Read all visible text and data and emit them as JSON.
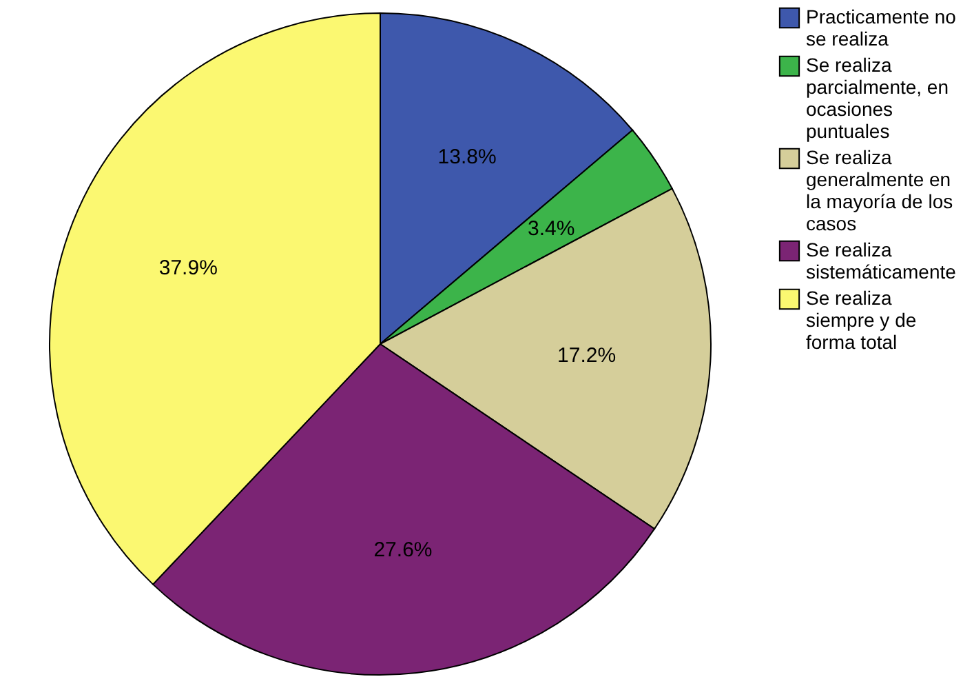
{
  "chart_data": {
    "type": "pie",
    "categories": [
      "Practicamente no se realiza",
      "Se realiza parcialmente, en ocasiones puntuales",
      "Se realiza generalmente en la mayoría de los casos",
      "Se realiza sistemáticamente",
      "Se realiza siempre y de forma total"
    ],
    "values": [
      13.8,
      3.4,
      17.2,
      27.6,
      37.9
    ],
    "colors": [
      "#3e58ac",
      "#3cb44a",
      "#d5ce9a",
      "#7b2474",
      "#fbf871"
    ],
    "value_labels": [
      "13.8%",
      "3.4%",
      "17.2%",
      "27.6%",
      "37.9%"
    ],
    "legend": "top right"
  }
}
